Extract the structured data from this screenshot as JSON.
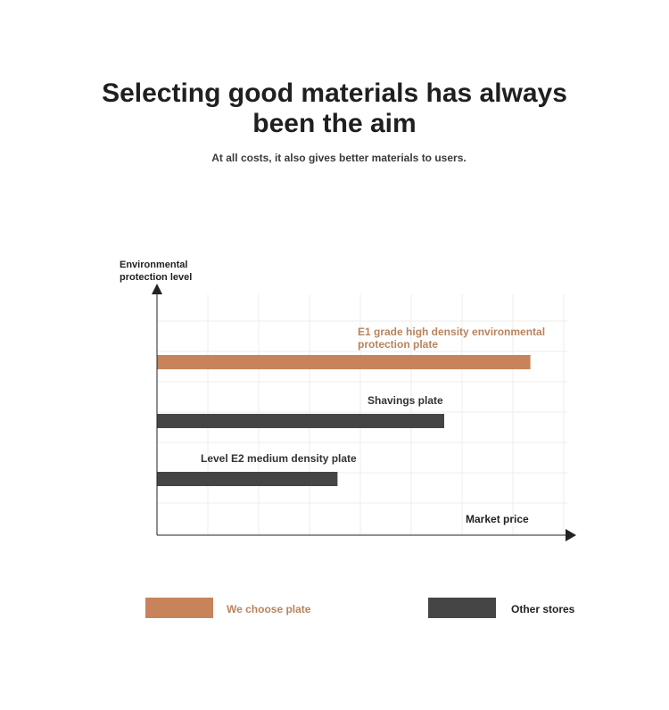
{
  "header": {
    "title": "Selecting good materials has always been the aim",
    "subtitle": "At all costs, it also gives better materials to users."
  },
  "colors": {
    "ours": "#c8835a",
    "other": "#454545",
    "ours_text": "#b8845e",
    "axis": "#222222",
    "grid": "#ededed"
  },
  "chart_data": {
    "type": "bar",
    "orientation": "horizontal",
    "ylabel": "Environmental protection level",
    "xlabel": "Market price",
    "grid": true,
    "xlim": [
      0,
      100
    ],
    "series": [
      {
        "name": "E1 grade high density environmental protection plate",
        "value": 91,
        "group": "ours"
      },
      {
        "name": "Shavings plate",
        "value": 70,
        "group": "other"
      },
      {
        "name": "Level E2 medium density plate",
        "value": 44,
        "group": "other"
      }
    ],
    "legend": [
      {
        "label": "We choose plate",
        "group": "ours"
      },
      {
        "label": "Other stores",
        "group": "other"
      }
    ],
    "legend_position": "bottom"
  }
}
